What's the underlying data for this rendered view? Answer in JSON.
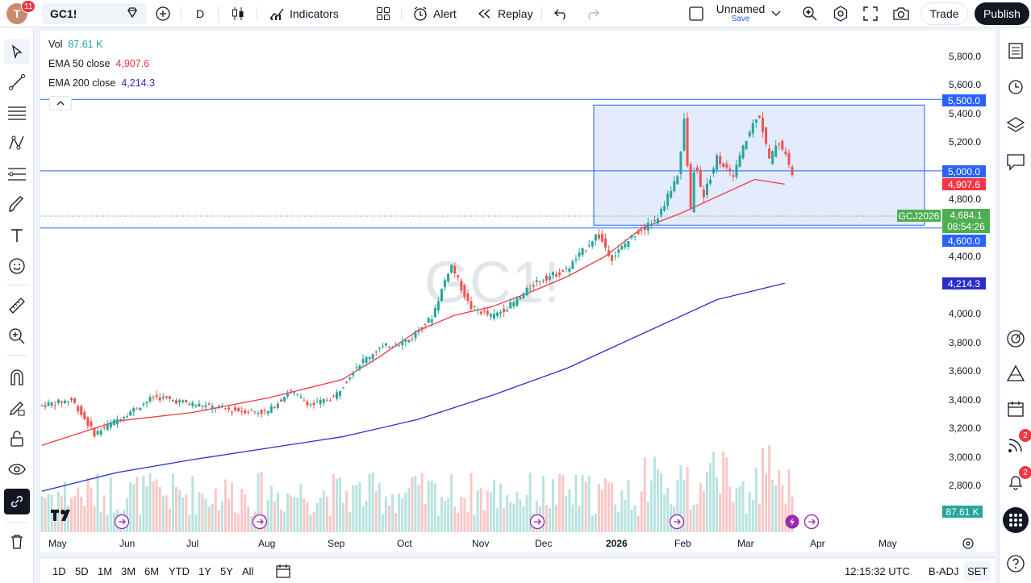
{
  "topbar": {
    "avatar_letter": "T",
    "avatar_badge": "11",
    "symbol": "GC1!",
    "interval": "D",
    "indicators_label": "Indicators",
    "alert_label": "Alert",
    "replay_label": "Replay",
    "layout_name": "Unnamed",
    "layout_save": "Save",
    "trade_label": "Trade",
    "publish_label": "Publish"
  },
  "legend": {
    "vol_label": "Vol",
    "vol_value": "87.61 K",
    "ema50_label": "EMA 50 close",
    "ema50_value": "4,907.6",
    "ema200_label": "EMA 200 close",
    "ema200_value": "4,214.3"
  },
  "watermark": "GC1!",
  "price_axis": {
    "ticks": [
      "5,800.0",
      "5,600.0",
      "5,400.0",
      "5,200.0",
      "5,000.0",
      "4,800.0",
      "4,600.0",
      "4,400.0",
      "4,200.0",
      "4,000.0",
      "3,800.0",
      "3,600.0",
      "3,400.0",
      "3,200.0",
      "3,000.0",
      "2,800.0"
    ],
    "labels": {
      "line_5500": "5,500.0",
      "line_5000": "5,000.0",
      "ema50": "4,907.6",
      "last_symbol": "GCJ2026",
      "last_price": "4,684.1",
      "countdown": "08:54:26",
      "line_4600": "4,600.0",
      "ema200": "4,214.3",
      "volume": "87.61 K"
    }
  },
  "time_axis": [
    "May",
    "Jun",
    "Jul",
    "Aug",
    "Sep",
    "Oct",
    "Nov",
    "Dec",
    "2026",
    "Feb",
    "Mar",
    "Apr",
    "May"
  ],
  "bottombar": {
    "ranges": [
      "1D",
      "5D",
      "1M",
      "3M",
      "6M",
      "YTD",
      "1Y",
      "5Y",
      "All"
    ],
    "clock": "12:15:32 UTC",
    "adj": "B-ADJ",
    "session": "SET"
  },
  "right_badges": {
    "ideas": "2",
    "alerts": "2"
  },
  "colors": {
    "up": "#26a69a",
    "down": "#ef5350",
    "ema50": "#f23645",
    "ema200": "#2a2fc9",
    "hline": "#2962ff",
    "rect_fill": "#e3ebfd",
    "last_price": "#4caf50"
  },
  "chart_data": {
    "type": "candlestick",
    "price_range": [
      2650,
      5880
    ],
    "horizontal_lines": [
      5500,
      5000,
      4600
    ],
    "rectangle": {
      "top_price": 5460,
      "bottom_price": 4620,
      "from": "2025-12",
      "to": "2026-04"
    },
    "ema50": [
      [
        0,
        3080
      ],
      [
        0.1,
        3250
      ],
      [
        0.2,
        3310
      ],
      [
        0.3,
        3410
      ],
      [
        0.4,
        3540
      ],
      [
        0.45,
        3700
      ],
      [
        0.5,
        3880
      ],
      [
        0.55,
        3990
      ],
      [
        0.6,
        4050
      ],
      [
        0.65,
        4150
      ],
      [
        0.7,
        4260
      ],
      [
        0.75,
        4400
      ],
      [
        0.8,
        4600
      ],
      [
        0.85,
        4700
      ],
      [
        0.9,
        4820
      ],
      [
        0.95,
        4940
      ],
      [
        0.99,
        4907
      ]
    ],
    "ema200": [
      [
        0,
        2760
      ],
      [
        0.1,
        2890
      ],
      [
        0.2,
        2980
      ],
      [
        0.3,
        3060
      ],
      [
        0.4,
        3140
      ],
      [
        0.5,
        3260
      ],
      [
        0.6,
        3430
      ],
      [
        0.7,
        3620
      ],
      [
        0.8,
        3860
      ],
      [
        0.9,
        4100
      ],
      [
        0.99,
        4214
      ]
    ]
  }
}
